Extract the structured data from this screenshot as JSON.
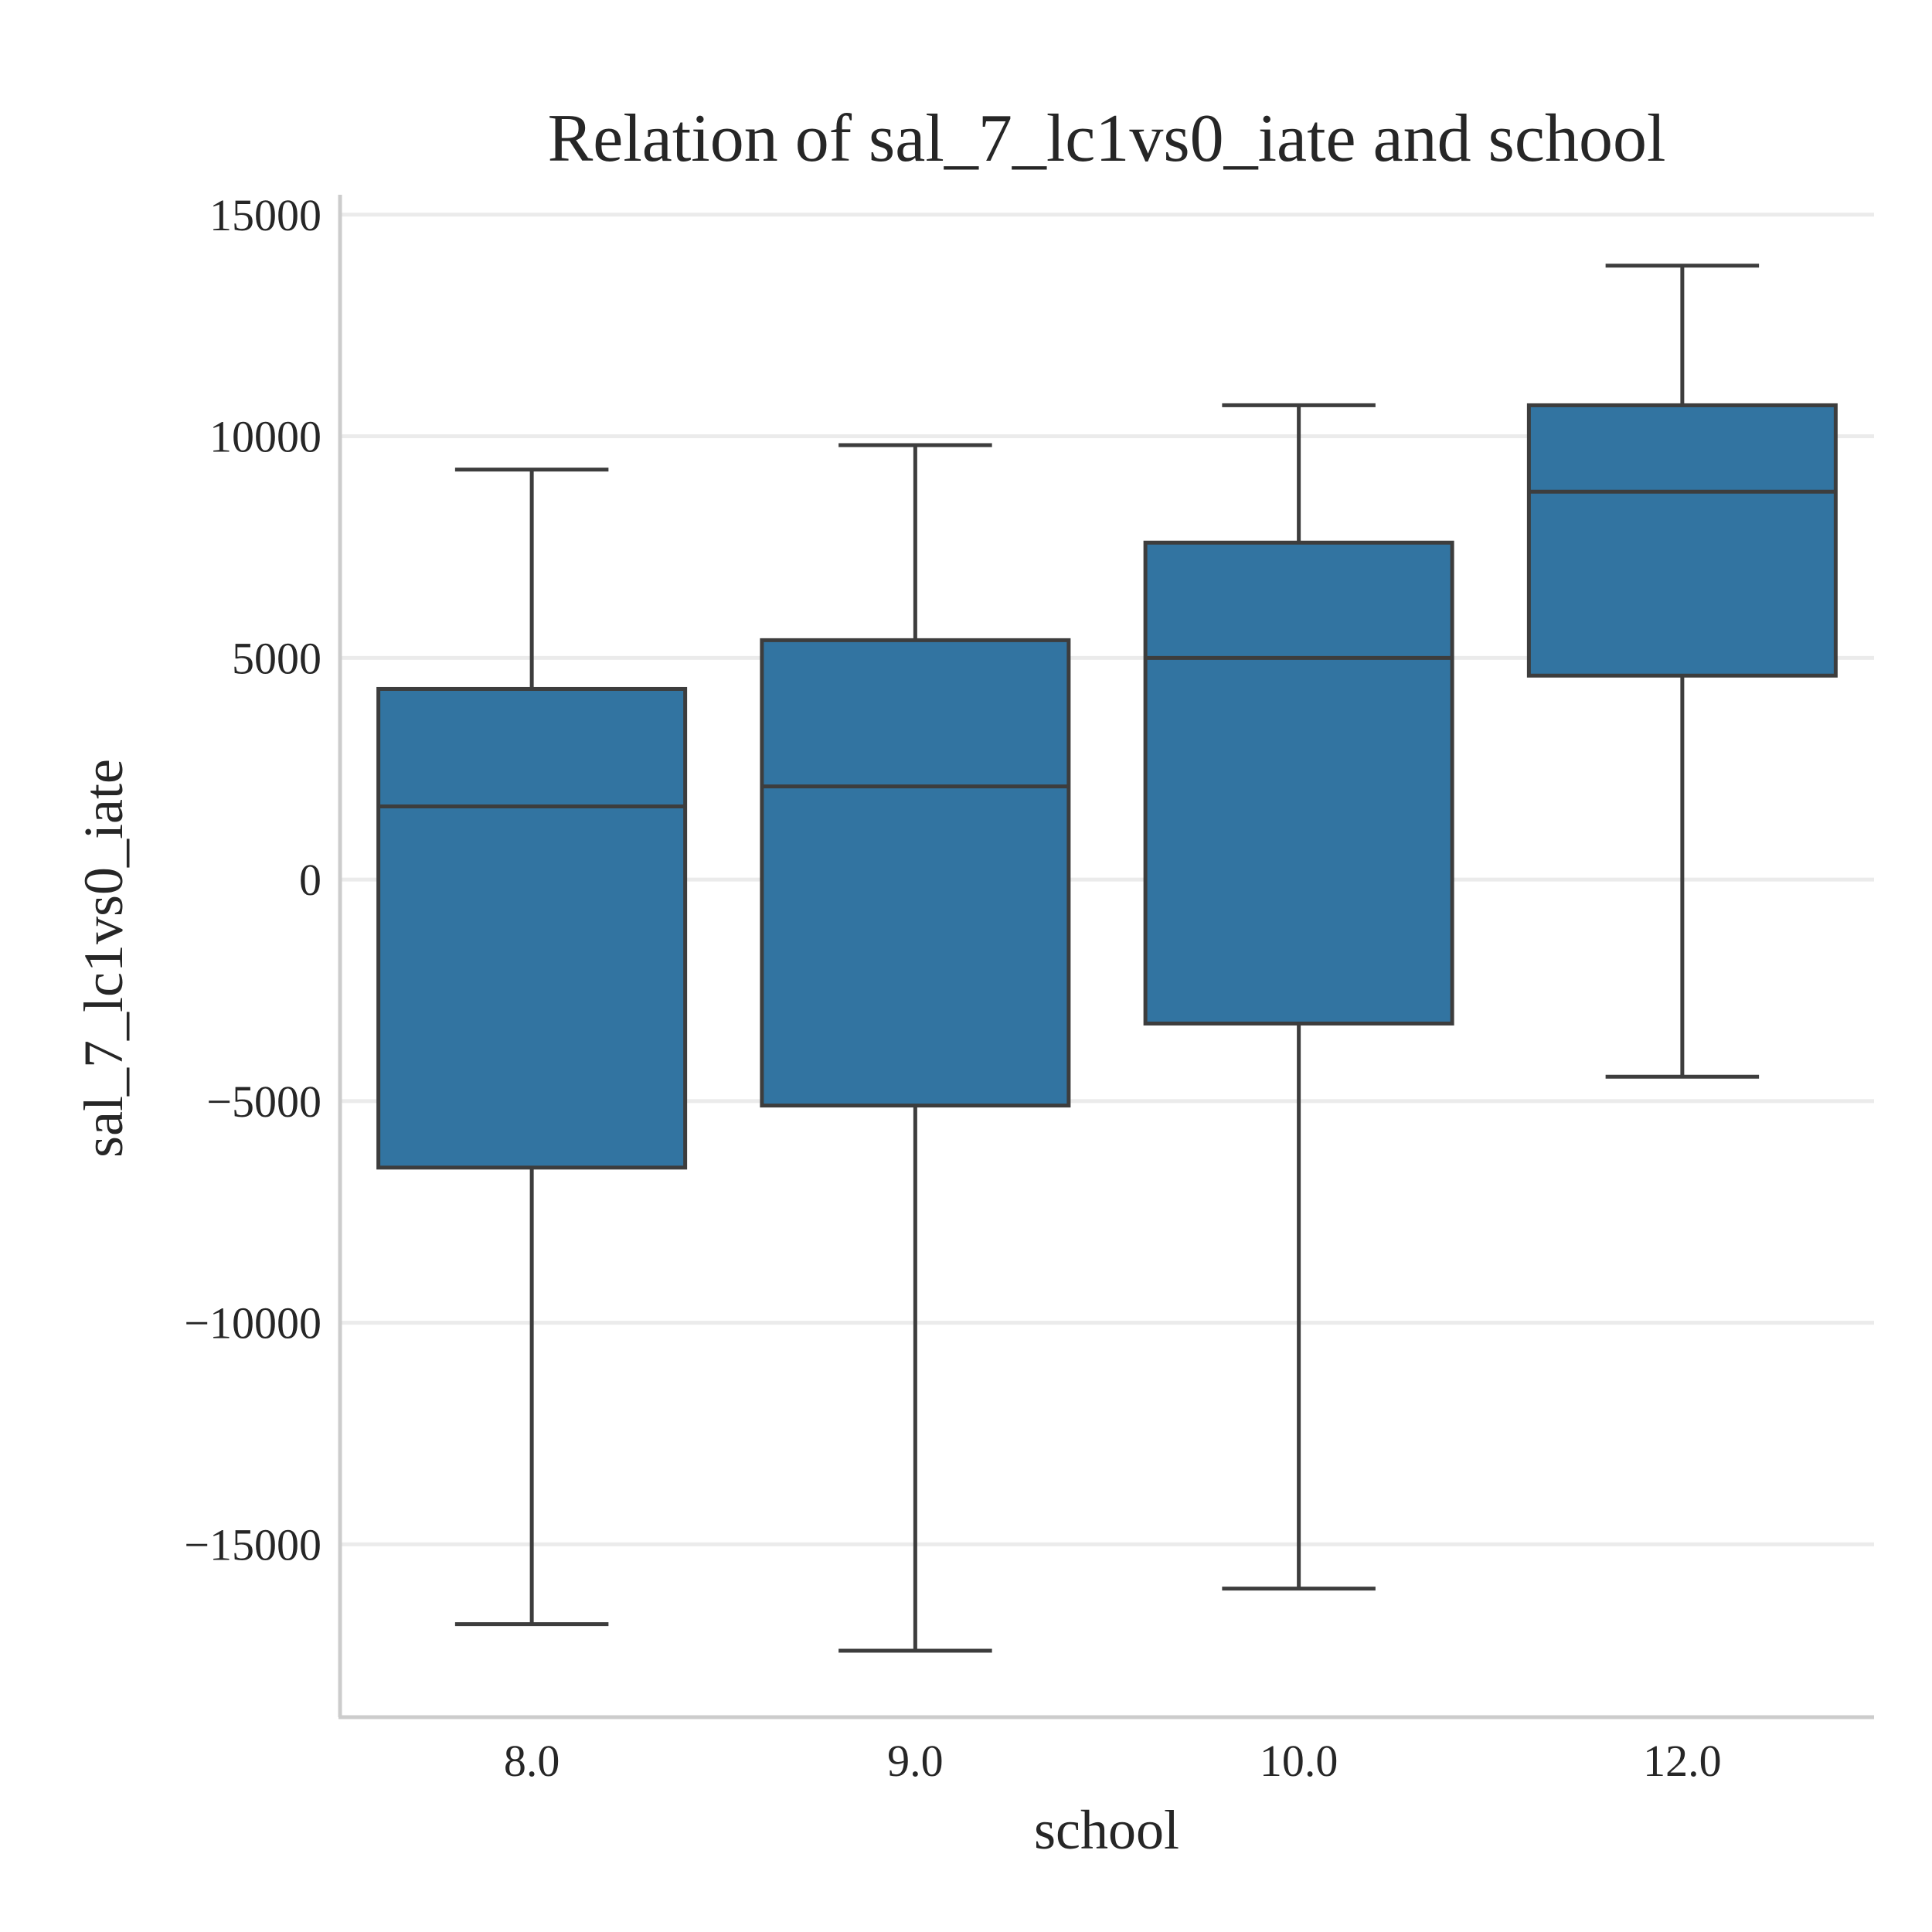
{
  "chart_data": {
    "type": "box",
    "title": "Relation of sal_7_lc1vs0_iate and school",
    "xlabel": "school",
    "ylabel": "sal_7_lc1vs0_iate",
    "categories": [
      "8.0",
      "9.0",
      "10.0",
      "12.0"
    ],
    "boxes": [
      {
        "category": "8.0",
        "whislo": -16800,
        "q1": -6500,
        "med": 1650,
        "q3": 4300,
        "whishi": 9250
      },
      {
        "category": "9.0",
        "whislo": -17400,
        "q1": -5100,
        "med": 2100,
        "q3": 5400,
        "whishi": 9800
      },
      {
        "category": "10.0",
        "whislo": -16000,
        "q1": -3250,
        "med": 5000,
        "q3": 7600,
        "whishi": 10700
      },
      {
        "category": "12.0",
        "whislo": -4450,
        "q1": 4600,
        "med": 8750,
        "q3": 10700,
        "whishi": 13850
      }
    ],
    "yticks": [
      15000,
      10000,
      5000,
      0,
      -5000,
      -10000,
      -15000
    ],
    "ytick_labels": [
      "15000",
      "10000",
      "5000",
      "0",
      "−5000",
      "−10000",
      "−15000"
    ],
    "ylim": [
      -18900,
      15450
    ],
    "grid": "horizontal",
    "color": "#3274a1",
    "edge_color": "#3d3d3d"
  }
}
